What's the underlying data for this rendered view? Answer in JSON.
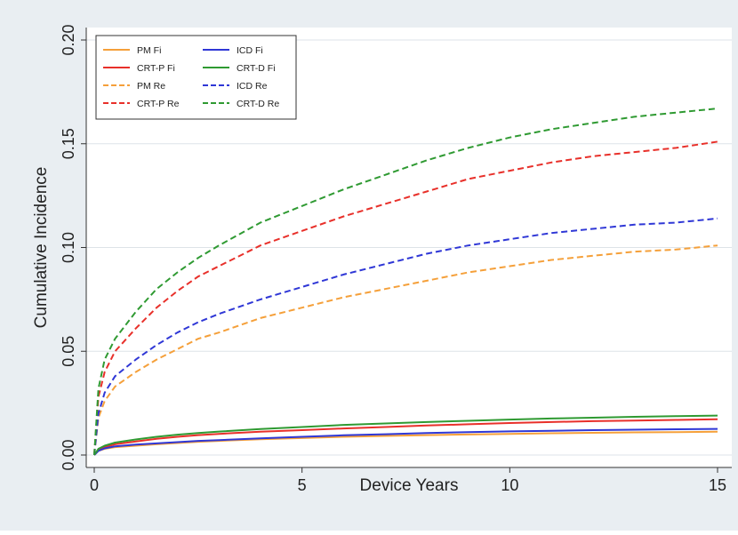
{
  "chart_data": {
    "type": "line",
    "title": "",
    "xlabel": "Device Years",
    "ylabel": "Cumulative Incidence",
    "xlim": [
      0,
      15
    ],
    "ylim": [
      0,
      0.2
    ],
    "xticks": [
      "0",
      "5",
      "10",
      "15"
    ],
    "xtick_values": [
      0,
      5,
      10,
      15
    ],
    "yticks": [
      "0.00",
      "0.05",
      "0.10",
      "0.15",
      "0.20"
    ],
    "ytick_values": [
      0,
      0.05,
      0.1,
      0.15,
      0.2
    ],
    "grid": true,
    "legend_position": "top-left",
    "colors": {
      "background": "#e9eef2",
      "plot": "#ffffff",
      "grid": "#dde3e8",
      "pm": "#f5a03a",
      "crtp": "#e8302a",
      "icd": "#2f37d6",
      "crtd": "#2f9a32"
    },
    "x": [
      0,
      0.1,
      0.25,
      0.5,
      1,
      1.5,
      2,
      2.5,
      3,
      4,
      5,
      6,
      7,
      8,
      9,
      10,
      11,
      12,
      13,
      14,
      15
    ],
    "series": [
      {
        "name": "PM Fi",
        "color_key": "pm",
        "dash": false,
        "values": [
          0.0,
          0.002,
          0.003,
          0.0038,
          0.0045,
          0.0052,
          0.0058,
          0.0064,
          0.0068,
          0.0076,
          0.0082,
          0.0088,
          0.0092,
          0.0096,
          0.0099,
          0.0102,
          0.0105,
          0.0107,
          0.0109,
          0.011,
          0.0112
        ]
      },
      {
        "name": "CRT-P Fi",
        "color_key": "crtp",
        "dash": false,
        "values": [
          0.0,
          0.0025,
          0.0038,
          0.0052,
          0.0065,
          0.0078,
          0.0088,
          0.0096,
          0.0102,
          0.0112,
          0.012,
          0.0128,
          0.0135,
          0.0142,
          0.0148,
          0.0154,
          0.0159,
          0.0163,
          0.0166,
          0.0169,
          0.0172
        ]
      },
      {
        "name": "PM Re",
        "color_key": "pm",
        "dash": true,
        "values": [
          0.0,
          0.018,
          0.026,
          0.033,
          0.04,
          0.046,
          0.051,
          0.056,
          0.059,
          0.066,
          0.071,
          0.076,
          0.08,
          0.084,
          0.088,
          0.091,
          0.094,
          0.096,
          0.098,
          0.099,
          0.101
        ]
      },
      {
        "name": "CRT-P Re",
        "color_key": "crtp",
        "dash": true,
        "values": [
          0.0,
          0.028,
          0.04,
          0.05,
          0.061,
          0.071,
          0.079,
          0.086,
          0.091,
          0.101,
          0.108,
          0.115,
          0.121,
          0.127,
          0.133,
          0.137,
          0.141,
          0.144,
          0.146,
          0.148,
          0.151
        ]
      },
      {
        "name": "ICD Fi",
        "color_key": "icd",
        "dash": false,
        "values": [
          0.0,
          0.002,
          0.0032,
          0.0042,
          0.005,
          0.0056,
          0.0062,
          0.0068,
          0.0072,
          0.008,
          0.0088,
          0.0095,
          0.01,
          0.0106,
          0.011,
          0.0114,
          0.0117,
          0.012,
          0.0122,
          0.0124,
          0.0126
        ]
      },
      {
        "name": "CRT-D Fi",
        "color_key": "crtd",
        "dash": false,
        "values": [
          0.0,
          0.003,
          0.0045,
          0.006,
          0.0075,
          0.0088,
          0.0098,
          0.0106,
          0.0113,
          0.0125,
          0.0135,
          0.0145,
          0.0152,
          0.0159,
          0.0165,
          0.0171,
          0.0176,
          0.018,
          0.0184,
          0.0187,
          0.019
        ]
      },
      {
        "name": "ICD Re",
        "color_key": "icd",
        "dash": true,
        "values": [
          0.0,
          0.02,
          0.03,
          0.038,
          0.046,
          0.053,
          0.059,
          0.064,
          0.068,
          0.075,
          0.081,
          0.087,
          0.092,
          0.097,
          0.101,
          0.104,
          0.107,
          0.109,
          0.111,
          0.112,
          0.114
        ]
      },
      {
        "name": "CRT-D Re",
        "color_key": "crtd",
        "dash": true,
        "values": [
          0.0,
          0.032,
          0.046,
          0.056,
          0.069,
          0.08,
          0.088,
          0.095,
          0.101,
          0.112,
          0.12,
          0.128,
          0.135,
          0.142,
          0.148,
          0.153,
          0.157,
          0.16,
          0.163,
          0.165,
          0.167
        ]
      }
    ]
  }
}
